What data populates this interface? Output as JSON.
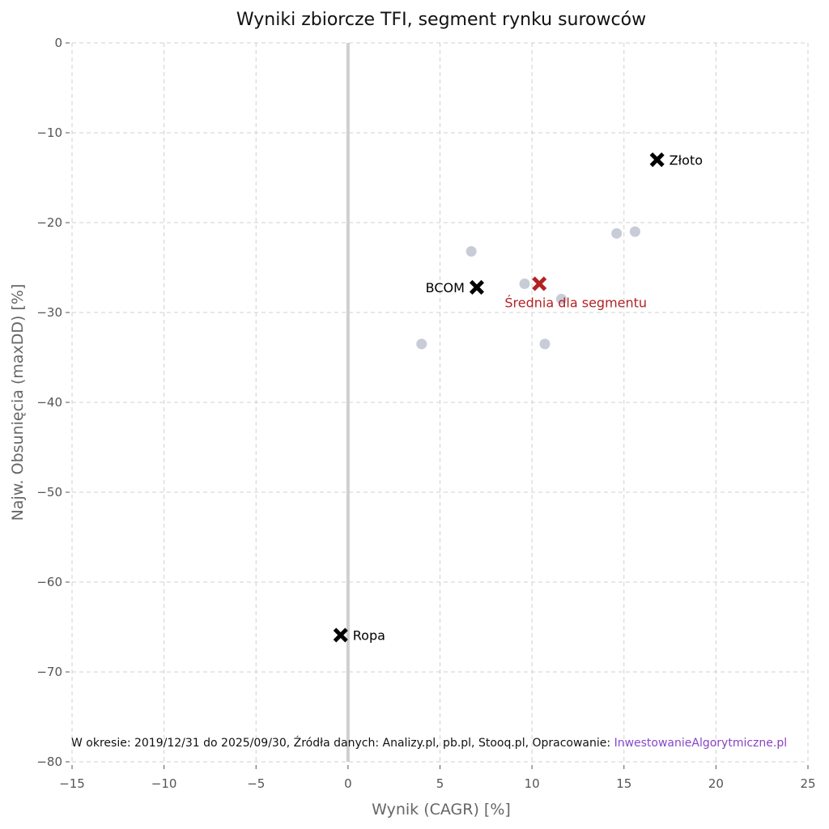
{
  "chart_data": {
    "type": "scatter",
    "title": "Wyniki zbiorcze TFI, segment rynku surowców",
    "xlabel": "Wynik (CAGR) [%]",
    "ylabel": "Najw. Obsunięcia (maxDD) [%]",
    "xlim": [
      -15,
      25
    ],
    "ylim": [
      -80,
      0
    ],
    "xticks": [
      -15,
      -10,
      -5,
      0,
      5,
      10,
      15,
      20,
      25
    ],
    "yticks": [
      0,
      -10,
      -20,
      -30,
      -40,
      -50,
      -60,
      -70,
      -80
    ],
    "xtick_labels": [
      "−15",
      "−10",
      "−5",
      "0",
      "5",
      "10",
      "15",
      "20",
      "25"
    ],
    "ytick_labels": [
      "0",
      "−10",
      "−20",
      "−30",
      "−40",
      "−50",
      "−60",
      "−70",
      "−80"
    ],
    "grid": true,
    "zero_line_x": 0,
    "funds": {
      "color": "#c8ccd6",
      "points": [
        {
          "x": 6.7,
          "y": -23.2
        },
        {
          "x": 9.6,
          "y": -26.8
        },
        {
          "x": 11.6,
          "y": -28.5
        },
        {
          "x": 14.6,
          "y": -21.2
        },
        {
          "x": 15.6,
          "y": -21.0
        },
        {
          "x": 4.0,
          "y": -33.5
        },
        {
          "x": 10.7,
          "y": -33.5
        }
      ]
    },
    "benchmarks": [
      {
        "label": "Złoto",
        "x": 16.8,
        "y": -13.0,
        "color": "#000000",
        "label_side": "right"
      },
      {
        "label": "BCOM",
        "x": 7.0,
        "y": -27.2,
        "color": "#000000",
        "label_side": "left"
      },
      {
        "label": "Ropa",
        "x": -0.4,
        "y": -65.9,
        "color": "#000000",
        "label_side": "right"
      }
    ],
    "average": {
      "label": "Średnia dla segmentu",
      "x": 10.4,
      "y": -26.8,
      "color": "#b22222"
    },
    "footnote": {
      "text": "W okresie: 2019/12/31 do 2025/09/30, Źródła danych: Analizy.pl, pb.pl, Stooq.pl, Opracowanie: ",
      "link": "InwestowanieAlgorytmiczne.pl",
      "link_colors": [
        "#6a6cf0",
        "#8a3fc0"
      ]
    }
  }
}
